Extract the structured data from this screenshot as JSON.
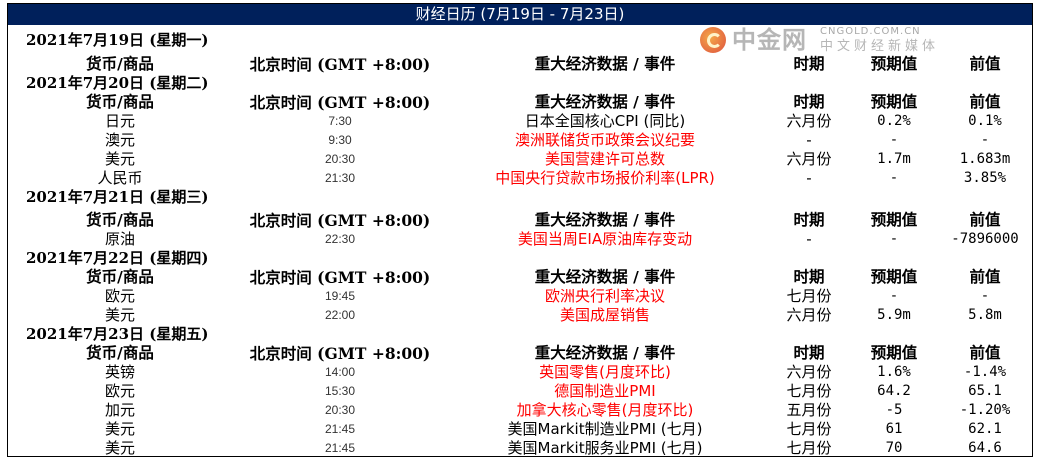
{
  "title": "财经日历 (7月19日 - 7月23日)",
  "colors": {
    "title_bar": "#00205b",
    "highlight_event": "#ff0000"
  },
  "headers": {
    "currency": "货币/商品",
    "time": "北京时间 (GMT +8:00)",
    "event": "重大经济数据 / 事件",
    "period": "时期",
    "forecast": "预期值",
    "previous": "前值"
  },
  "days": [
    {
      "date": "2021年7月19日 (星期一)",
      "events": []
    },
    {
      "date": "2021年7月20日 (星期二)",
      "events": [
        {
          "currency": "日元",
          "time": "7:30",
          "event": "日本全国核心CPI (同比)",
          "highlight": false,
          "period": "六月份",
          "forecast": "0.2%",
          "previous": "0.1%"
        },
        {
          "currency": "澳元",
          "time": "9:30",
          "event": "澳洲联储货币政策会议纪要",
          "highlight": true,
          "period": "-",
          "forecast": "-",
          "previous": "-"
        },
        {
          "currency": "美元",
          "time": "20:30",
          "event": "美国营建许可总数",
          "highlight": true,
          "period": "六月份",
          "forecast": "1.7m",
          "previous": "1.683m"
        },
        {
          "currency": "人民币",
          "time": "21:30",
          "event": "中国央行贷款市场报价利率(LPR)",
          "highlight": true,
          "period": "-",
          "forecast": "-",
          "previous": "3.85%"
        }
      ]
    },
    {
      "date": "2021年7月21日 (星期三)",
      "events": [
        {
          "currency": "原油",
          "time": "22:30",
          "event": "美国当周EIA原油库存变动",
          "highlight": true,
          "period": "-",
          "forecast": "-",
          "previous": "-7896000"
        }
      ]
    },
    {
      "date": "2021年7月22日 (星期四)",
      "events": [
        {
          "currency": "欧元",
          "time": "19:45",
          "event": "欧洲央行利率决议",
          "highlight": true,
          "period": "七月份",
          "forecast": "-",
          "previous": "-"
        },
        {
          "currency": "美元",
          "time": "22:00",
          "event": "美国成屋销售",
          "highlight": true,
          "period": "六月份",
          "forecast": "5.9m",
          "previous": "5.8m"
        }
      ]
    },
    {
      "date": "2021年7月23日 (星期五)",
      "events": [
        {
          "currency": "英镑",
          "time": "14:00",
          "event": "英国零售(月度环比)",
          "highlight": true,
          "period": "六月份",
          "forecast": "1.6%",
          "previous": "-1.4%"
        },
        {
          "currency": "欧元",
          "time": "15:30",
          "event": "德国制造业PMI",
          "highlight": true,
          "period": "七月份",
          "forecast": "64.2",
          "previous": "65.1"
        },
        {
          "currency": "加元",
          "time": "20:30",
          "event": "加拿大核心零售(月度环比)",
          "highlight": true,
          "period": "五月份",
          "forecast": "-5",
          "previous": "-1.20%"
        },
        {
          "currency": "美元",
          "time": "21:45",
          "event": "美国Markit制造业PMI (七月)",
          "highlight": false,
          "period": "七月份",
          "forecast": "61",
          "previous": "62.1"
        },
        {
          "currency": "美元",
          "time": "21:45",
          "event": "美国Markit服务业PMI (七月)",
          "highlight": false,
          "period": "七月份",
          "forecast": "70",
          "previous": "64.6"
        }
      ]
    }
  ],
  "watermark": {
    "brand": "中金网",
    "url": "CNGOLD.COM.CN",
    "slogan": "中文财经新媒体",
    "icon": "cngold-logo-icon"
  }
}
